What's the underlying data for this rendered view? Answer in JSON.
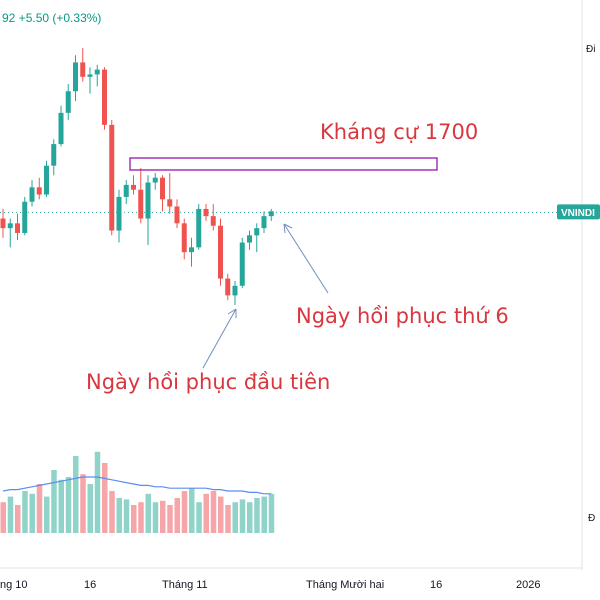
{
  "header": {
    "change_text": "92  +5.50 (+0.33%)"
  },
  "colors": {
    "up": "#26a69a",
    "down": "#ef5350",
    "vol_up": "#8fd3c9",
    "vol_down": "#f6a5a9",
    "resistance": "#9c27b0",
    "annotation": "#d9363e",
    "arrow": "#6f8fbf",
    "ma_line": "#5b8def",
    "price_line": "#26a69a"
  },
  "right_axis": {
    "top_label": "Đi",
    "bottom_label": "Đ",
    "ticker_tag": "VNINDI"
  },
  "annotations": {
    "resistance_label": "Kháng cự 1700",
    "day6_label": "Ngày hồi phục thứ 6",
    "day1_label": "Ngày hồi phục đầu tiên"
  },
  "chart_data": {
    "type": "candlestick",
    "ticker": "VNINDEX",
    "x_tick_labels": [
      "ng 10",
      "16",
      "Tháng 11",
      "Tháng Mười hai",
      "16",
      "2026"
    ],
    "resistance_level": 1700,
    "candles": [
      {
        "o": 1664,
        "h": 1672,
        "l": 1648,
        "c": 1656
      },
      {
        "o": 1656,
        "h": 1664,
        "l": 1640,
        "c": 1660
      },
      {
        "o": 1660,
        "h": 1668,
        "l": 1646,
        "c": 1652
      },
      {
        "o": 1652,
        "h": 1682,
        "l": 1650,
        "c": 1678
      },
      {
        "o": 1678,
        "h": 1696,
        "l": 1674,
        "c": 1690
      },
      {
        "o": 1690,
        "h": 1698,
        "l": 1680,
        "c": 1684
      },
      {
        "o": 1684,
        "h": 1712,
        "l": 1682,
        "c": 1708
      },
      {
        "o": 1708,
        "h": 1730,
        "l": 1700,
        "c": 1726
      },
      {
        "o": 1726,
        "h": 1758,
        "l": 1724,
        "c": 1752
      },
      {
        "o": 1752,
        "h": 1776,
        "l": 1746,
        "c": 1770
      },
      {
        "o": 1770,
        "h": 1800,
        "l": 1762,
        "c": 1794
      },
      {
        "o": 1794,
        "h": 1806,
        "l": 1778,
        "c": 1782
      },
      {
        "o": 1782,
        "h": 1790,
        "l": 1768,
        "c": 1784
      },
      {
        "o": 1784,
        "h": 1792,
        "l": 1774,
        "c": 1788
      },
      {
        "o": 1788,
        "h": 1790,
        "l": 1738,
        "c": 1742
      },
      {
        "o": 1742,
        "h": 1746,
        "l": 1650,
        "c": 1654
      },
      {
        "o": 1654,
        "h": 1688,
        "l": 1644,
        "c": 1682
      },
      {
        "o": 1682,
        "h": 1696,
        "l": 1676,
        "c": 1692
      },
      {
        "o": 1692,
        "h": 1700,
        "l": 1684,
        "c": 1688
      },
      {
        "o": 1688,
        "h": 1706,
        "l": 1660,
        "c": 1664
      },
      {
        "o": 1664,
        "h": 1700,
        "l": 1642,
        "c": 1694
      },
      {
        "o": 1694,
        "h": 1702,
        "l": 1688,
        "c": 1698
      },
      {
        "o": 1698,
        "h": 1700,
        "l": 1670,
        "c": 1680
      },
      {
        "o": 1680,
        "h": 1702,
        "l": 1668,
        "c": 1674
      },
      {
        "o": 1674,
        "h": 1680,
        "l": 1656,
        "c": 1660
      },
      {
        "o": 1660,
        "h": 1664,
        "l": 1630,
        "c": 1636
      },
      {
        "o": 1636,
        "h": 1648,
        "l": 1624,
        "c": 1640
      },
      {
        "o": 1640,
        "h": 1676,
        "l": 1638,
        "c": 1672
      },
      {
        "o": 1672,
        "h": 1676,
        "l": 1662,
        "c": 1666
      },
      {
        "o": 1666,
        "h": 1676,
        "l": 1654,
        "c": 1658
      },
      {
        "o": 1658,
        "h": 1664,
        "l": 1608,
        "c": 1614
      },
      {
        "o": 1614,
        "h": 1618,
        "l": 1596,
        "c": 1600
      },
      {
        "o": 1600,
        "h": 1612,
        "l": 1592,
        "c": 1608
      },
      {
        "o": 1608,
        "h": 1648,
        "l": 1606,
        "c": 1644
      },
      {
        "o": 1644,
        "h": 1654,
        "l": 1638,
        "c": 1650
      },
      {
        "o": 1650,
        "h": 1660,
        "l": 1636,
        "c": 1656
      },
      {
        "o": 1656,
        "h": 1670,
        "l": 1652,
        "c": 1666
      },
      {
        "o": 1666,
        "h": 1672,
        "l": 1662,
        "c": 1670
      }
    ],
    "volume": [
      22,
      26,
      20,
      30,
      28,
      35,
      26,
      45,
      38,
      40,
      55,
      42,
      35,
      58,
      50,
      30,
      25,
      24,
      20,
      22,
      28,
      22,
      23,
      20,
      25,
      30,
      32,
      22,
      28,
      30,
      26,
      20,
      22,
      24,
      22,
      25,
      26,
      28
    ],
    "volume_ma": [
      30,
      31,
      31,
      32,
      33,
      34,
      35,
      36,
      37,
      38,
      39,
      40,
      40,
      40,
      39,
      38,
      37,
      36,
      35,
      34,
      34,
      33,
      33,
      32,
      32,
      32,
      32,
      32,
      32,
      31,
      31,
      30,
      30,
      30,
      29,
      29,
      28,
      28
    ]
  }
}
